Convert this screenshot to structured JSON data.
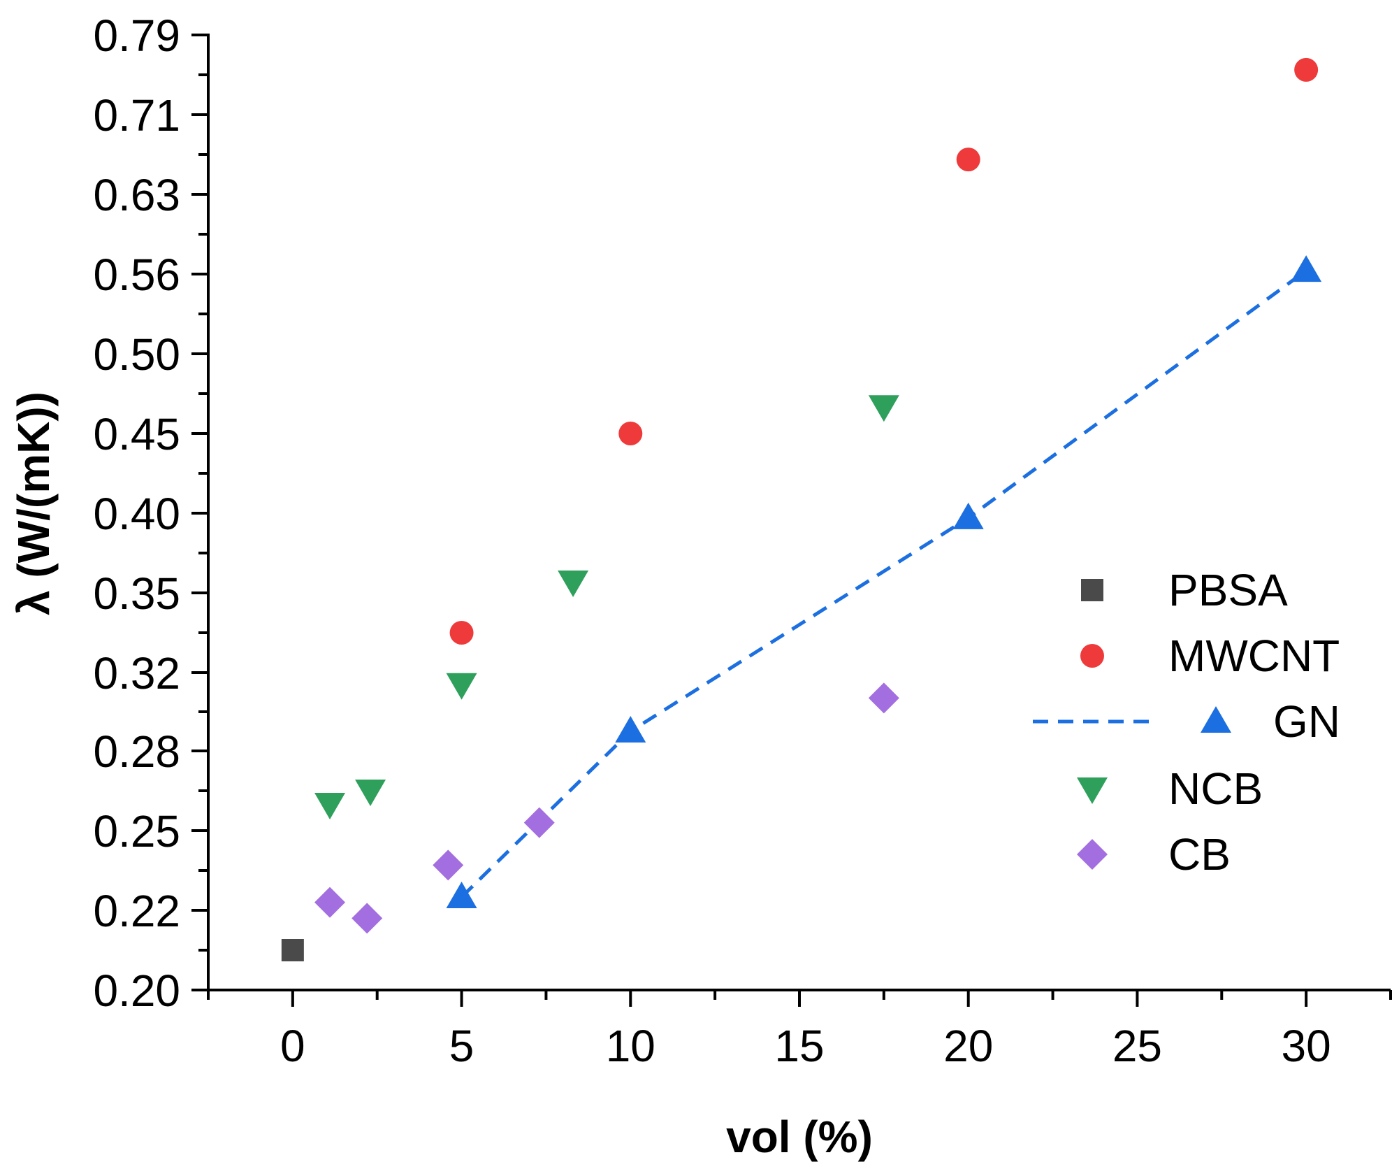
{
  "chart_data": {
    "type": "scatter",
    "title": "",
    "xlabel": "vol (%)",
    "ylabel": "λ (W/(mK))",
    "xlim": [
      -2.5,
      32.5
    ],
    "ylim": [
      0.2,
      0.79
    ],
    "x_ticks": [
      0,
      5,
      10,
      15,
      20,
      25,
      30
    ],
    "y_ticks": [
      0.2,
      0.22,
      0.25,
      0.28,
      0.32,
      0.35,
      0.4,
      0.45,
      0.5,
      0.56,
      0.63,
      0.71,
      0.79
    ],
    "y_tick_labels": [
      "0.20",
      "0.22",
      "0.25",
      "0.28",
      "0.32",
      "0.35",
      "0.40",
      "0.45",
      "0.50",
      "0.56",
      "0.63",
      "0.71",
      "0.79"
    ],
    "grid": false,
    "legend_position": "right",
    "series": [
      {
        "name": "PBSA",
        "marker": "square",
        "color": "#4a4a4a",
        "points": [
          [
            0,
            0.21
          ]
        ]
      },
      {
        "name": "MWCNT",
        "marker": "circle",
        "color": "#ee3a3a",
        "points": [
          [
            5,
            0.335
          ],
          [
            10,
            0.45
          ],
          [
            20,
            0.665
          ],
          [
            30,
            0.755
          ]
        ]
      },
      {
        "name": "GN",
        "marker": "triangle-up",
        "color": "#1c6fe0",
        "line": "dashed",
        "points": [
          [
            5,
            0.225
          ],
          [
            10,
            0.29
          ],
          [
            20,
            0.397
          ],
          [
            30,
            0.563
          ]
        ]
      },
      {
        "name": "NCB",
        "marker": "triangle-down",
        "color": "#2ea05c",
        "points": [
          [
            1.1,
            0.26
          ],
          [
            2.3,
            0.265
          ],
          [
            5,
            0.314
          ],
          [
            8.3,
            0.357
          ],
          [
            17.5,
            0.467
          ]
        ]
      },
      {
        "name": "CB",
        "marker": "diamond",
        "color": "#a36ee0",
        "points": [
          [
            1.1,
            0.223
          ],
          [
            2.2,
            0.218
          ],
          [
            4.6,
            0.237
          ],
          [
            7.3,
            0.253
          ],
          [
            17.5,
            0.307
          ]
        ]
      }
    ]
  }
}
